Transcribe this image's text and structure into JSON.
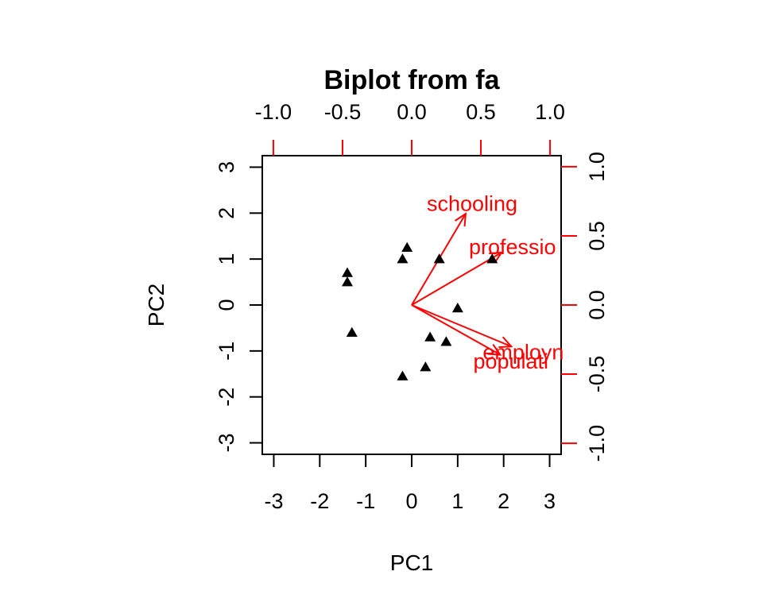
{
  "chart_data": {
    "type": "scatter",
    "title": "Biplot from fa",
    "xlabel": "PC1",
    "ylabel": "PC2",
    "xlim": [
      -3.25,
      3.25
    ],
    "ylim": [
      -3.25,
      3.25
    ],
    "loading_lim": [
      -1.08,
      1.08
    ],
    "x_ticks": [
      -3,
      -2,
      -1,
      0,
      1,
      2,
      3
    ],
    "y_ticks": [
      -3,
      -2,
      -1,
      0,
      1,
      2,
      3
    ],
    "loading_ticks": [
      -1.0,
      -0.5,
      0.0,
      0.5,
      1.0
    ],
    "x_tick_labels": [
      "-3",
      "-2",
      "-1",
      "0",
      "1",
      "2",
      "3"
    ],
    "y_tick_labels": [
      "-3",
      "-2",
      "-1",
      "0",
      "1",
      "2",
      "3"
    ],
    "loading_tick_labels": [
      "-1.0",
      "-0.5",
      "0.0",
      "0.5",
      "1.0"
    ],
    "grid": false,
    "point_marker": "filled-triangle",
    "point_color": "#000000",
    "loading_color": "#ff0000",
    "points": [
      {
        "x": -1.4,
        "y": 0.7
      },
      {
        "x": -1.4,
        "y": 0.5
      },
      {
        "x": -1.3,
        "y": -0.6
      },
      {
        "x": -0.2,
        "y": 1.0
      },
      {
        "x": -0.1,
        "y": 1.25
      },
      {
        "x": 0.6,
        "y": 1.0
      },
      {
        "x": 1.0,
        "y": -0.07
      },
      {
        "x": 1.75,
        "y": 1.0
      },
      {
        "x": 0.4,
        "y": -0.7
      },
      {
        "x": 0.75,
        "y": -0.8
      },
      {
        "x": 0.3,
        "y": -1.35
      },
      {
        "x": -0.2,
        "y": -1.55
      }
    ],
    "loadings": [
      {
        "label": "schooling",
        "x": 0.39,
        "y": 0.66
      },
      {
        "label": "professio",
        "x": 0.65,
        "y": 0.38
      },
      {
        "label": "employn",
        "x": 0.72,
        "y": -0.3
      },
      {
        "label": "populati",
        "x": 0.64,
        "y": -0.36
      }
    ]
  }
}
